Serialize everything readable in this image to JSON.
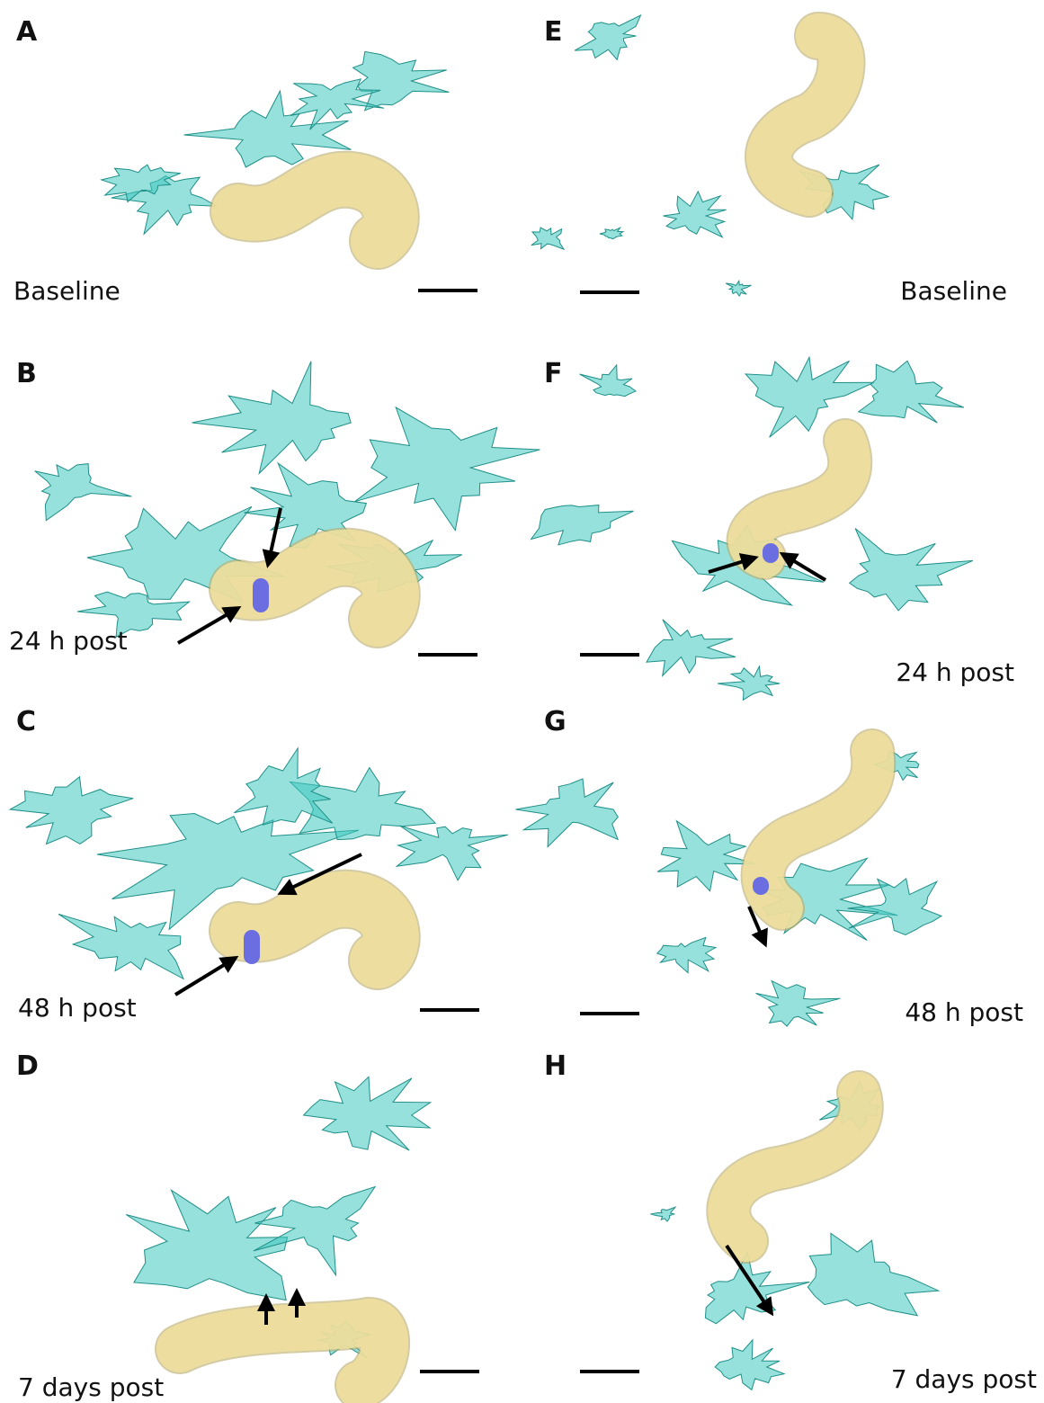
{
  "panels": [
    {
      "letter": "A",
      "label": "Baseline"
    },
    {
      "letter": "B",
      "label": "24 h post"
    },
    {
      "letter": "C",
      "label": "48 h post"
    },
    {
      "letter": "D",
      "label": "7 days post"
    },
    {
      "letter": "E",
      "label": "Baseline"
    },
    {
      "letter": "F",
      "label": "24 h post"
    },
    {
      "letter": "G",
      "label": "48 h post"
    },
    {
      "letter": "H",
      "label": "7 days post"
    }
  ]
}
